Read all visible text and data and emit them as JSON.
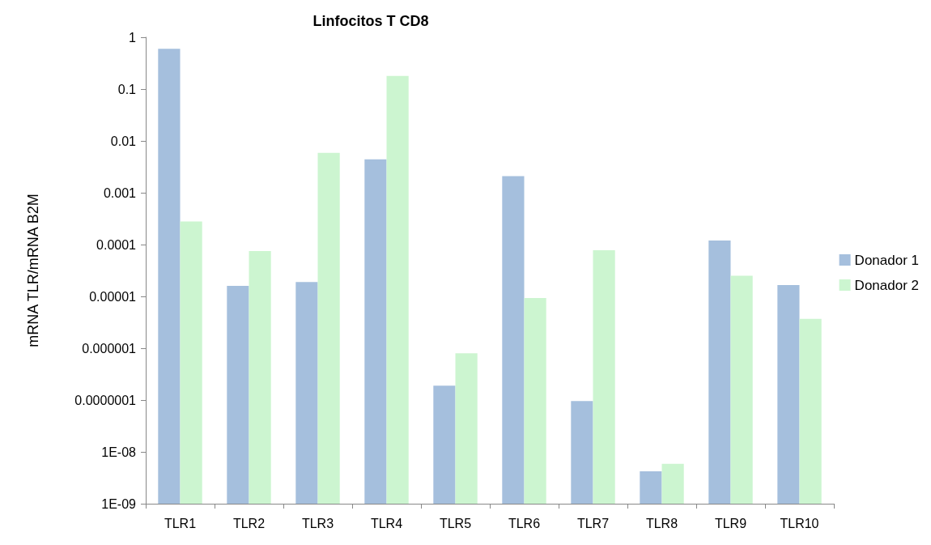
{
  "chart_data": {
    "type": "bar",
    "title": "Linfocitos T CD8",
    "ylabel": "mRNA TLR/mRNA B2M",
    "categories": [
      "TLR1",
      "TLR2",
      "TLR3",
      "TLR4",
      "TLR5",
      "TLR6",
      "TLR7",
      "TLR8",
      "TLR9",
      "TLR10"
    ],
    "series": [
      {
        "name": "Donador 1",
        "color": "#a5bfdd",
        "values": [
          0.6,
          1.6e-05,
          1.9e-05,
          0.0044,
          1.9e-07,
          0.0021,
          9.6e-08,
          4.2e-09,
          0.00012,
          1.65e-05
        ]
      },
      {
        "name": "Donador 2",
        "color": "#ccf5d0",
        "values": [
          0.00028,
          7.5e-05,
          0.0059,
          0.18,
          8e-07,
          9.3e-06,
          7.8e-05,
          5.9e-09,
          2.5e-05,
          3.7e-06
        ]
      }
    ],
    "log": "y",
    "ylim": [
      1e-09,
      1
    ],
    "yticks": [
      {
        "value": 1e-09,
        "label": "1E-09"
      },
      {
        "value": 1e-08,
        "label": "1E-08"
      },
      {
        "value": 1e-07,
        "label": "0.0000001"
      },
      {
        "value": 1e-06,
        "label": "0.000001"
      },
      {
        "value": 1e-05,
        "label": "0.00001"
      },
      {
        "value": 0.0001,
        "label": "0.0001"
      },
      {
        "value": 0.001,
        "label": "0.001"
      },
      {
        "value": 0.01,
        "label": "0.01"
      },
      {
        "value": 0.1,
        "label": "0.1"
      },
      {
        "value": 1,
        "label": "1"
      }
    ],
    "grid": false,
    "legend": "right"
  }
}
